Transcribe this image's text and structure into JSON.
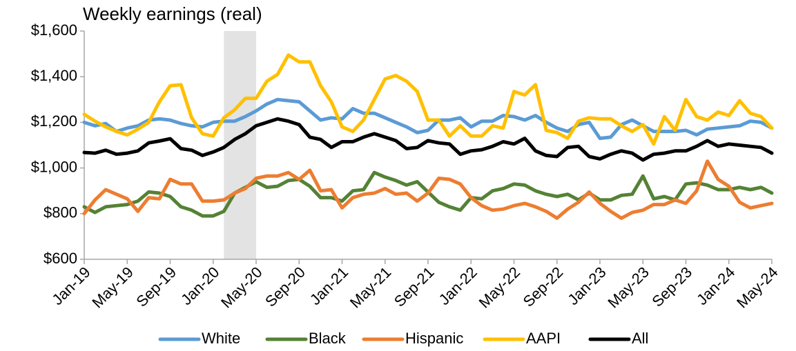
{
  "chart_data": {
    "type": "line",
    "title": "Weekly earnings (real)",
    "categories": [
      "Jan-19",
      null,
      null,
      null,
      "May-19",
      null,
      null,
      null,
      "Sep-19",
      null,
      null,
      null,
      "Jan-20",
      null,
      null,
      null,
      "May-20",
      null,
      null,
      null,
      "Sep-20",
      null,
      null,
      null,
      "Jan-21",
      null,
      null,
      null,
      "May-21",
      null,
      null,
      null,
      "Sep-21",
      null,
      null,
      null,
      "Jan-22",
      null,
      null,
      null,
      "May-22",
      null,
      null,
      null,
      "Sep-22",
      null,
      null,
      null,
      "Jan-23",
      null,
      null,
      null,
      "May-23",
      null,
      null,
      null,
      "Sep-23",
      null,
      null,
      null,
      "Jan-24",
      null,
      null,
      null,
      "May-24"
    ],
    "series": [
      {
        "name": "White",
        "color": "#5b9bd5",
        "values": [
          1200,
          1185,
          1195,
          1160,
          1175,
          1185,
          1210,
          1215,
          1210,
          1195,
          1185,
          1180,
          1200,
          1205,
          1205,
          1225,
          1250,
          1280,
          1300,
          1295,
          1290,
          1250,
          1210,
          1220,
          1215,
          1260,
          1240,
          1240,
          1220,
          1200,
          1180,
          1155,
          1165,
          1210,
          1210,
          1220,
          1180,
          1205,
          1205,
          1230,
          1225,
          1210,
          1230,
          1200,
          1175,
          1160,
          1190,
          1200,
          1130,
          1135,
          1190,
          1210,
          1185,
          1160,
          1160,
          1160,
          1165,
          1145,
          1170,
          1175,
          1180,
          1185,
          1205,
          1200,
          1175
        ]
      },
      {
        "name": "Black",
        "color": "#548235",
        "values": [
          830,
          805,
          830,
          835,
          840,
          855,
          895,
          890,
          875,
          830,
          815,
          790,
          790,
          810,
          890,
          915,
          940,
          915,
          920,
          945,
          950,
          920,
          870,
          870,
          855,
          900,
          905,
          980,
          960,
          945,
          925,
          940,
          895,
          850,
          830,
          815,
          870,
          865,
          900,
          910,
          930,
          925,
          900,
          885,
          875,
          885,
          860,
          890,
          860,
          860,
          880,
          885,
          965,
          865,
          875,
          860,
          930,
          935,
          925,
          905,
          905,
          915,
          905,
          915,
          890
        ]
      },
      {
        "name": "Hispanic",
        "color": "#ed7d31",
        "values": [
          800,
          860,
          905,
          885,
          865,
          810,
          870,
          865,
          950,
          930,
          930,
          855,
          855,
          860,
          890,
          910,
          955,
          965,
          965,
          980,
          950,
          990,
          900,
          905,
          825,
          870,
          885,
          890,
          910,
          885,
          890,
          855,
          890,
          955,
          950,
          930,
          870,
          835,
          815,
          820,
          835,
          845,
          830,
          810,
          780,
          820,
          850,
          895,
          845,
          810,
          780,
          805,
          815,
          840,
          840,
          860,
          845,
          900,
          1030,
          950,
          920,
          850,
          825,
          835,
          845
        ]
      },
      {
        "name": "AAPI",
        "color": "#ffc000",
        "values": [
          1235,
          1205,
          1180,
          1160,
          1145,
          1170,
          1200,
          1290,
          1360,
          1365,
          1220,
          1150,
          1140,
          1220,
          1255,
          1305,
          1305,
          1380,
          1410,
          1495,
          1465,
          1465,
          1360,
          1290,
          1180,
          1160,
          1210,
          1300,
          1390,
          1405,
          1380,
          1335,
          1210,
          1210,
          1140,
          1185,
          1140,
          1140,
          1185,
          1175,
          1335,
          1320,
          1365,
          1165,
          1155,
          1130,
          1205,
          1220,
          1215,
          1215,
          1185,
          1160,
          1190,
          1105,
          1225,
          1165,
          1300,
          1225,
          1210,
          1245,
          1230,
          1295,
          1240,
          1225,
          1175
        ]
      },
      {
        "name": "All",
        "color": "#000000",
        "values": [
          1068,
          1065,
          1078,
          1060,
          1065,
          1075,
          1110,
          1118,
          1128,
          1085,
          1078,
          1055,
          1070,
          1090,
          1125,
          1150,
          1185,
          1200,
          1215,
          1205,
          1190,
          1135,
          1125,
          1090,
          1115,
          1115,
          1135,
          1150,
          1135,
          1120,
          1085,
          1090,
          1120,
          1110,
          1105,
          1060,
          1075,
          1080,
          1095,
          1115,
          1105,
          1130,
          1075,
          1055,
          1050,
          1090,
          1095,
          1050,
          1040,
          1060,
          1075,
          1065,
          1035,
          1060,
          1065,
          1075,
          1075,
          1095,
          1120,
          1095,
          1105,
          1100,
          1095,
          1090,
          1065
        ]
      }
    ],
    "ylim": [
      600,
      1600
    ],
    "yticks": [
      {
        "value": 600,
        "label": "$600"
      },
      {
        "value": 800,
        "label": "$800"
      },
      {
        "value": 1000,
        "label": "$1,000"
      },
      {
        "value": 1200,
        "label": "$1,200"
      },
      {
        "value": 1400,
        "label": "$1,400"
      },
      {
        "value": 1600,
        "label": "$1,600"
      }
    ],
    "grid": false,
    "legend": "bottom"
  }
}
